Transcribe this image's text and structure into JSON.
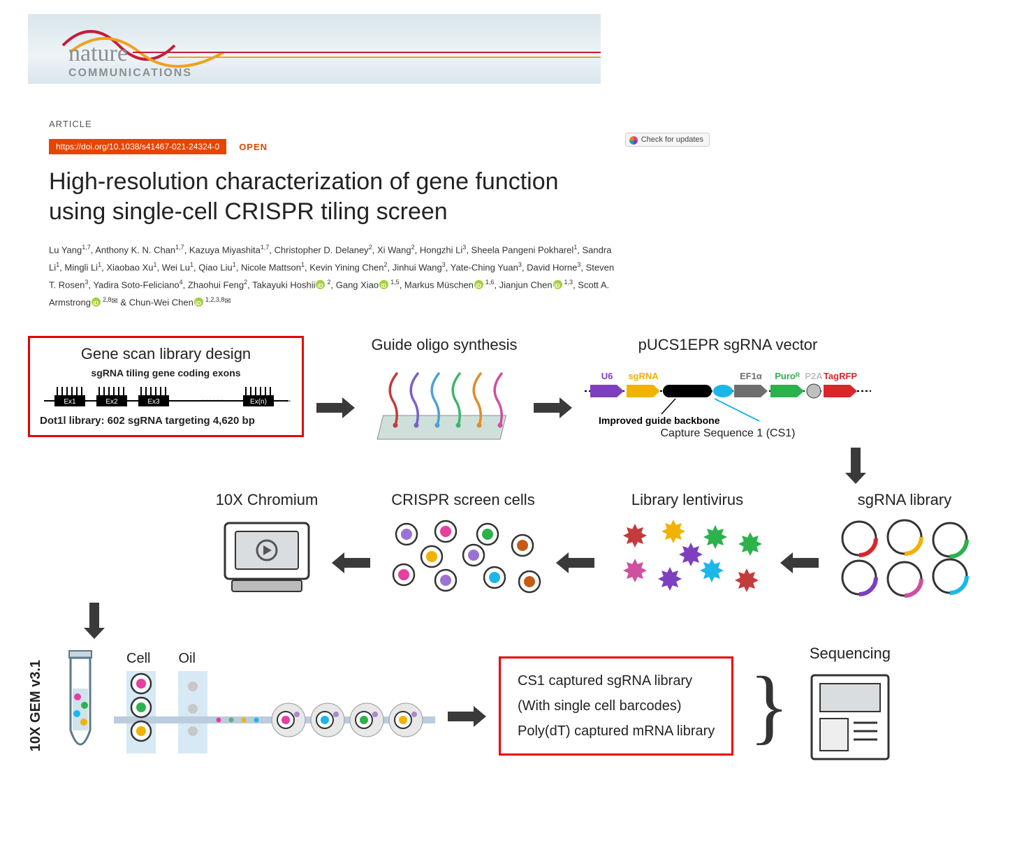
{
  "journal": {
    "name": "nature",
    "sub": "COMMUNICATIONS"
  },
  "article": {
    "label": "ARTICLE",
    "doi": "https://doi.org/10.1038/s41467-021-24324-0",
    "open": "OPEN",
    "check_updates": "Check for updates",
    "title": "High-resolution characterization of gene function using single-cell CRISPR tiling screen"
  },
  "authors": [
    {
      "n": "Lu Yang",
      "a": "1,7"
    },
    {
      "n": "Anthony K. N. Chan",
      "a": "1,7"
    },
    {
      "n": "Kazuya Miyashita",
      "a": "1,7"
    },
    {
      "n": "Christopher D. Delaney",
      "a": "2"
    },
    {
      "n": "Xi Wang",
      "a": "2"
    },
    {
      "n": "Hongzhi Li",
      "a": "3"
    },
    {
      "n": "Sheela Pangeni Pokharel",
      "a": "1"
    },
    {
      "n": "Sandra Li",
      "a": "1"
    },
    {
      "n": "Mingli Li",
      "a": "1"
    },
    {
      "n": "Xiaobao Xu",
      "a": "1"
    },
    {
      "n": "Wei Lu",
      "a": "1"
    },
    {
      "n": "Qiao Liu",
      "a": "1"
    },
    {
      "n": "Nicole Mattson",
      "a": "1"
    },
    {
      "n": "Kevin Yining Chen",
      "a": "2"
    },
    {
      "n": "Jinhui Wang",
      "a": "3"
    },
    {
      "n": "Yate-Ching Yuan",
      "a": "3"
    },
    {
      "n": "David Horne",
      "a": "3"
    },
    {
      "n": "Steven T. Rosen",
      "a": "3"
    },
    {
      "n": "Yadira Soto-Feliciano",
      "a": "4"
    },
    {
      "n": "Zhaohui Feng",
      "a": "2"
    },
    {
      "n": "Takayuki Hoshii",
      "a": "2",
      "orcid": true
    },
    {
      "n": "Gang Xiao",
      "a": "1,5",
      "orcid": true
    },
    {
      "n": "Markus Müschen",
      "a": "1,6",
      "orcid": true
    },
    {
      "n": "Jianjun Chen",
      "a": "1,3",
      "orcid": true
    },
    {
      "n": "Scott A. Armstrong",
      "a": "2,8",
      "orcid": true,
      "corr": true
    },
    {
      "n": "Chun-Wei Chen",
      "a": "1,2,3,8",
      "orcid": true,
      "corr": true,
      "last": true
    }
  ],
  "workflow": {
    "p1": {
      "title": "Gene scan library design",
      "sub": "sgRNA tiling gene coding exons",
      "exons": [
        "Ex1",
        "Ex2",
        "Ex3",
        "Ex(n)"
      ],
      "bottom": "Dot1l library: 602 sgRNA targeting 4,620 bp"
    },
    "p2": {
      "title": "Guide oligo synthesis",
      "oligo_colors": [
        "#c43b3b",
        "#7b5fc5",
        "#4ea0d8",
        "#3fb56b",
        "#e08b2e",
        "#d04f9e"
      ]
    },
    "p3": {
      "title": "pUCS1EPR sgRNA vector",
      "elements": [
        {
          "label": "U6",
          "color": "#7e3fbf"
        },
        {
          "label": "sgRNA",
          "color": "#f2b200"
        },
        {
          "label": "",
          "color": "#000000",
          "w": 70
        },
        {
          "label": "",
          "color": "#1bb7ea",
          "w": 24,
          "shape": "oval"
        },
        {
          "label": "EF1α",
          "color": "#6e6e6e"
        },
        {
          "label": "Puroᴿ",
          "color": "#2bb24c"
        },
        {
          "label": "P2A",
          "color": "#bfbfbf",
          "shape": "circle"
        },
        {
          "label": "TagRFP",
          "color": "#d9262a"
        }
      ],
      "backbone_label": "Improved guide backbone",
      "cs1": "Capture Sequence 1 (CS1)"
    },
    "p4": {
      "title": "sgRNA library",
      "arc_colors": [
        "#d9262a",
        "#f2b200",
        "#2bb24c",
        "#7e3fbf",
        "#d04f9e",
        "#1bb7ea"
      ]
    },
    "p5": {
      "title": "Library lentivirus",
      "virus_colors": [
        "#c43b3b",
        "#f2b200",
        "#2bb24c",
        "#2bb24c",
        "#d04f9e",
        "#7e3fbf",
        "#1bb7ea",
        "#c43b3b",
        "#7e3fbf"
      ]
    },
    "p6": {
      "title": "CRISPR screen cells",
      "cell_colors": [
        "#9a72d4",
        "#e63ea1",
        "#2bb24c",
        "#c65a17",
        "#f2b200",
        "#9a72d4",
        "#e63ea1",
        "#9a72d4",
        "#1bb7ea",
        "#c65a17"
      ]
    },
    "p7": {
      "title": "10X Chromium"
    },
    "p8": {
      "vlabel": "10X GEM v3.1",
      "cell_label": "Cell",
      "oil_label": "Oil",
      "lib1": "CS1 captured sgRNA library",
      "lib1_sub": "(With single cell barcodes)",
      "lib2": "Poly(dT) captured mRNA library",
      "seq_title": "Sequencing"
    },
    "colors": {
      "red_highlight": "#e80000",
      "arrow": "#3a3a3a"
    }
  }
}
